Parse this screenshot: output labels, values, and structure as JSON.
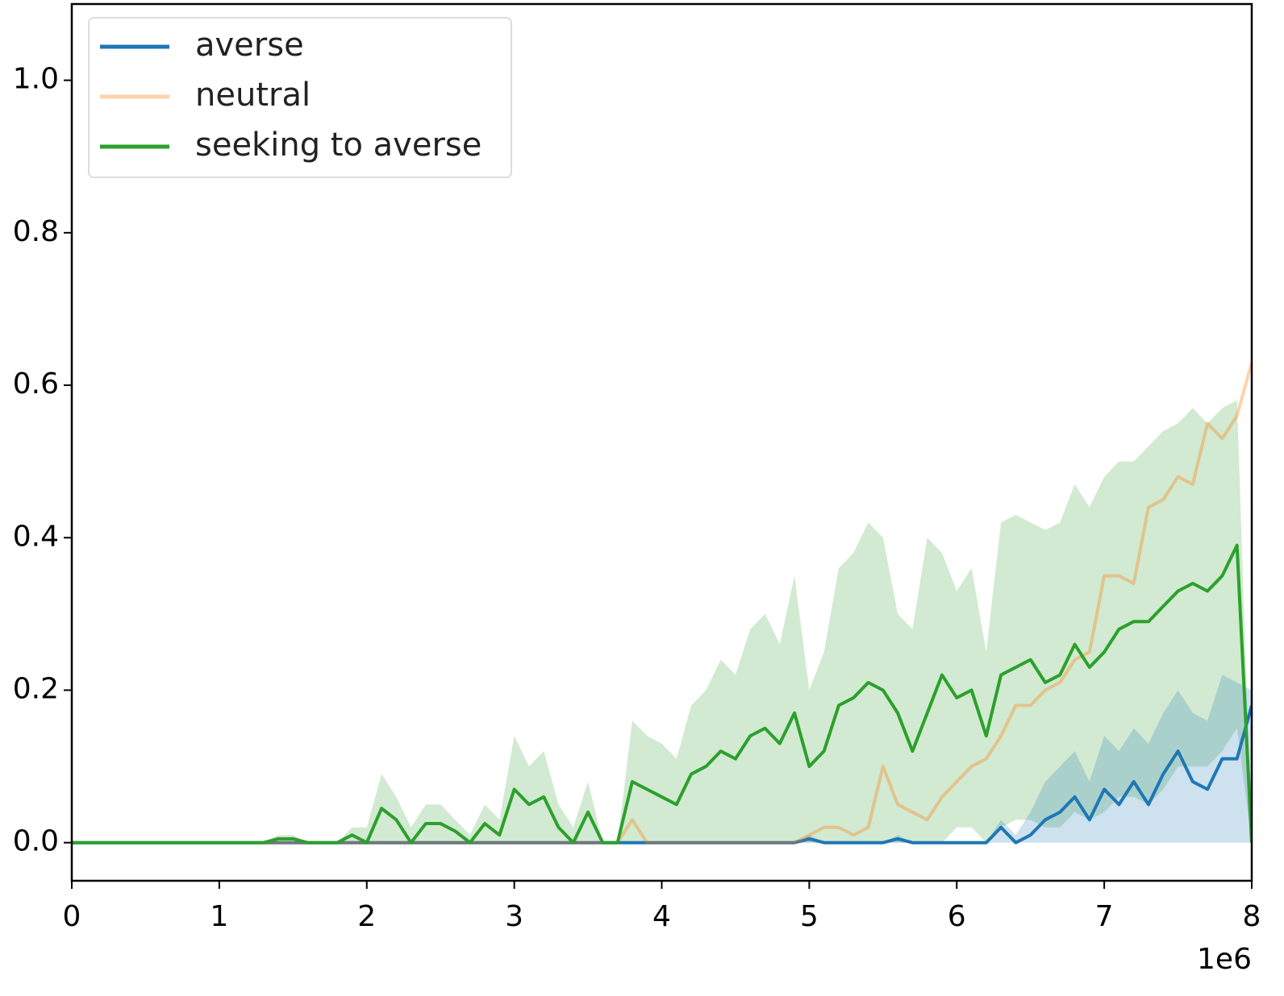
{
  "chart_data": {
    "type": "line",
    "x": [
      0,
      0.1,
      0.2,
      0.3,
      0.4,
      0.5,
      0.6,
      0.7,
      0.8,
      0.9,
      1,
      1.1,
      1.2,
      1.3,
      1.4,
      1.5,
      1.6,
      1.7,
      1.8,
      1.9,
      2,
      2.1,
      2.2,
      2.3,
      2.4,
      2.5,
      2.6,
      2.7,
      2.8,
      2.9,
      3,
      3.1,
      3.2,
      3.3,
      3.4,
      3.5,
      3.6,
      3.7,
      3.8,
      3.9,
      4,
      4.1,
      4.2,
      4.3,
      4.4,
      4.5,
      4.6,
      4.7,
      4.8,
      4.9,
      5,
      5.1,
      5.2,
      5.3,
      5.4,
      5.5,
      5.6,
      5.7,
      5.8,
      5.9,
      6,
      6.1,
      6.2,
      6.3,
      6.4,
      6.5,
      6.6,
      6.7,
      6.8,
      6.9,
      7,
      7.1,
      7.2,
      7.3,
      7.4,
      7.5,
      7.6,
      7.7,
      7.8,
      7.9,
      8
    ],
    "series": [
      {
        "name": "averse",
        "color": "#1f77b4",
        "opacity": 1,
        "values": [
          0,
          0,
          0,
          0,
          0,
          0,
          0,
          0,
          0,
          0,
          0,
          0,
          0,
          0,
          0,
          0,
          0,
          0,
          0,
          0,
          0,
          0,
          0,
          0,
          0,
          0,
          0,
          0,
          0,
          0,
          0,
          0,
          0,
          0,
          0,
          0,
          0,
          0,
          0,
          0,
          0,
          0,
          0,
          0,
          0,
          0,
          0,
          0,
          0,
          0,
          0.005,
          0,
          0,
          0,
          0,
          0,
          0.005,
          0,
          0,
          0,
          0,
          0,
          0,
          0.02,
          0,
          0.01,
          0.03,
          0.04,
          0.06,
          0.03,
          0.07,
          0.05,
          0.08,
          0.05,
          0.09,
          0.12,
          0.08,
          0.07,
          0.11,
          0.11,
          0.18
        ],
        "upper": [
          0,
          0,
          0,
          0,
          0,
          0,
          0,
          0,
          0,
          0,
          0,
          0,
          0,
          0,
          0,
          0,
          0,
          0,
          0,
          0,
          0,
          0,
          0,
          0,
          0,
          0,
          0,
          0,
          0,
          0,
          0,
          0,
          0,
          0,
          0,
          0,
          0,
          0,
          0,
          0,
          0,
          0,
          0,
          0,
          0,
          0,
          0,
          0,
          0,
          0,
          0.01,
          0,
          0,
          0,
          0,
          0,
          0.01,
          0,
          0,
          0,
          0,
          0,
          0,
          0.03,
          0.01,
          0.04,
          0.08,
          0.1,
          0.12,
          0.08,
          0.14,
          0.12,
          0.15,
          0.13,
          0.17,
          0.2,
          0.17,
          0.16,
          0.22,
          0.21,
          0.2
        ],
        "lower": [
          0,
          0,
          0,
          0,
          0,
          0,
          0,
          0,
          0,
          0,
          0,
          0,
          0,
          0,
          0,
          0,
          0,
          0,
          0,
          0,
          0,
          0,
          0,
          0,
          0,
          0,
          0,
          0,
          0,
          0,
          0,
          0,
          0,
          0,
          0,
          0,
          0,
          0,
          0,
          0,
          0,
          0,
          0,
          0,
          0,
          0,
          0,
          0,
          0,
          0,
          0,
          0,
          0,
          0,
          0,
          0,
          0,
          0,
          0,
          0,
          0,
          0,
          0,
          0,
          0,
          0,
          0,
          0,
          0,
          0,
          0,
          0,
          0,
          0,
          0,
          0,
          0,
          0,
          0,
          0,
          0
        ]
      },
      {
        "name": "neutral",
        "color": "#ff7f0e",
        "opacity": 0.35,
        "values": [
          0,
          0,
          0,
          0,
          0,
          0,
          0,
          0,
          0,
          0,
          0,
          0,
          0,
          0,
          0,
          0,
          0,
          0,
          0,
          0,
          0,
          0,
          0,
          0,
          0,
          0,
          0,
          0,
          0,
          0,
          0,
          0,
          0,
          0,
          0,
          0,
          0,
          0,
          0.03,
          0,
          0,
          0,
          0,
          0,
          0,
          0,
          0,
          0,
          0,
          0,
          0.01,
          0.02,
          0.02,
          0.01,
          0.02,
          0.1,
          0.05,
          0.04,
          0.03,
          0.06,
          0.08,
          0.1,
          0.11,
          0.14,
          0.18,
          0.18,
          0.2,
          0.21,
          0.24,
          0.25,
          0.35,
          0.35,
          0.34,
          0.44,
          0.45,
          0.48,
          0.47,
          0.55,
          0.53,
          0.56,
          0.63
        ]
      },
      {
        "name": "seeking to averse",
        "color": "#2ca02c",
        "opacity": 1,
        "values": [
          0,
          0,
          0,
          0,
          0,
          0,
          0,
          0,
          0,
          0,
          0,
          0,
          0,
          0,
          0.005,
          0.005,
          0,
          0,
          0,
          0.01,
          0,
          0.045,
          0.03,
          0,
          0.025,
          0.025,
          0.015,
          0,
          0.025,
          0.01,
          0.07,
          0.05,
          0.06,
          0.02,
          0,
          0.04,
          0,
          0,
          0.08,
          0.07,
          0.06,
          0.05,
          0.09,
          0.1,
          0.12,
          0.11,
          0.14,
          0.15,
          0.13,
          0.17,
          0.1,
          0.12,
          0.18,
          0.19,
          0.21,
          0.2,
          0.17,
          0.12,
          0.17,
          0.22,
          0.19,
          0.2,
          0.14,
          0.22,
          0.23,
          0.24,
          0.21,
          0.22,
          0.26,
          0.23,
          0.25,
          0.28,
          0.29,
          0.29,
          0.31,
          0.33,
          0.34,
          0.33,
          0.35,
          0.39,
          0
        ],
        "upper": [
          0,
          0,
          0,
          0,
          0,
          0,
          0,
          0,
          0,
          0,
          0,
          0,
          0,
          0,
          0.01,
          0.01,
          0,
          0,
          0,
          0.02,
          0.02,
          0.09,
          0.06,
          0.02,
          0.05,
          0.05,
          0.03,
          0.01,
          0.05,
          0.03,
          0.14,
          0.1,
          0.12,
          0.05,
          0.02,
          0.08,
          0,
          0,
          0.16,
          0.14,
          0.13,
          0.11,
          0.18,
          0.2,
          0.24,
          0.22,
          0.28,
          0.3,
          0.26,
          0.35,
          0.2,
          0.25,
          0.36,
          0.38,
          0.42,
          0.4,
          0.3,
          0.28,
          0.4,
          0.38,
          0.33,
          0.36,
          0.25,
          0.42,
          0.43,
          0.42,
          0.41,
          0.42,
          0.47,
          0.44,
          0.48,
          0.5,
          0.5,
          0.52,
          0.54,
          0.55,
          0.57,
          0.55,
          0.57,
          0.58,
          0
        ],
        "lower": [
          0,
          0,
          0,
          0,
          0,
          0,
          0,
          0,
          0,
          0,
          0,
          0,
          0,
          0,
          0,
          0,
          0,
          0,
          0,
          0,
          0,
          0,
          0,
          0,
          0,
          0,
          0,
          0,
          0,
          0,
          0,
          0,
          0,
          0,
          0,
          0,
          0,
          0,
          0,
          0,
          0,
          0,
          0,
          0,
          0,
          0,
          0,
          0,
          0,
          0,
          0,
          0,
          0,
          0,
          0,
          0,
          0,
          0,
          0,
          0,
          0.02,
          0.02,
          0,
          0.02,
          0.03,
          0.03,
          0.02,
          0.02,
          0.04,
          0.03,
          0.04,
          0.06,
          0.06,
          0.05,
          0.07,
          0.1,
          0.1,
          0.1,
          0.12,
          0.15,
          0
        ]
      }
    ],
    "xlim": [
      0,
      8
    ],
    "xticks": [
      0,
      1,
      2,
      3,
      4,
      5,
      6,
      7,
      8
    ],
    "x_offset_label": "1e6",
    "ylim": [
      -0.05,
      1.1
    ],
    "yticks": [
      {
        "value": 0,
        "label": "0.0"
      },
      0.2,
      0.4,
      0.6,
      0.8,
      {
        "value": 1,
        "label": "1.0"
      }
    ],
    "band_opacity": 0.22,
    "legend": "upper left"
  }
}
